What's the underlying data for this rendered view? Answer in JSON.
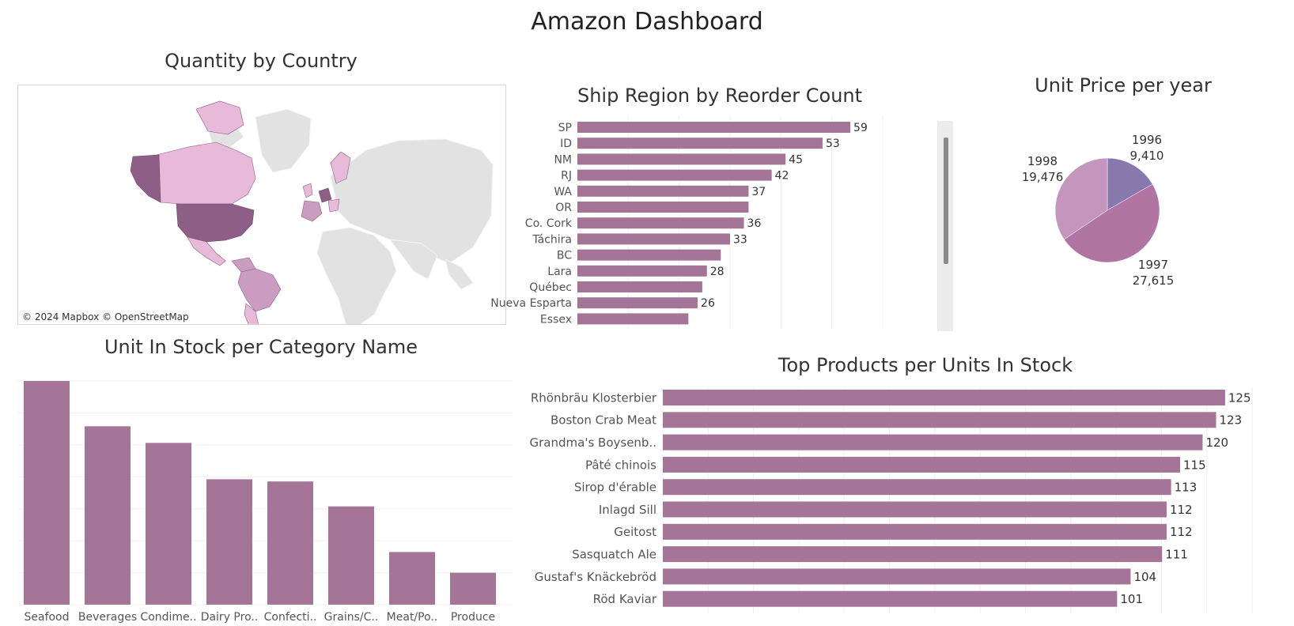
{
  "dashboard": {
    "title": "Amazon Dashboard"
  },
  "map": {
    "title": "Quantity by Country",
    "credit": "© 2024 Mapbox © OpenStreetMap",
    "colors": {
      "dark": "#8d5f86",
      "mid": "#c99cc0",
      "light": "#e6bad8",
      "land": "#e2e2e2",
      "water": "#ffffff"
    }
  },
  "chart_data": [
    {
      "type": "bar",
      "orientation": "horizontal",
      "title": "Ship Region by Reorder Count",
      "categories": [
        "SP",
        "ID",
        "NM",
        "RJ",
        "WA",
        "OR",
        "Co. Cork",
        "Táchira",
        "BC",
        "Lara",
        "Québec",
        "Nueva Esparta",
        "Essex"
      ],
      "values": [
        59,
        53,
        45,
        42,
        37,
        37,
        36,
        33,
        31,
        28,
        27,
        26,
        24
      ],
      "labels": [
        "59",
        "53",
        "45",
        "42",
        "37",
        "",
        "36",
        "33",
        "",
        "28",
        "",
        "26",
        ""
      ],
      "xlim": [
        0,
        66
      ],
      "grid": true,
      "color": "#a57597"
    },
    {
      "type": "pie",
      "title": "Unit Price per year",
      "slices": [
        {
          "label": "1996",
          "value": 9410,
          "value_label": "9,410",
          "color": "#8779ae"
        },
        {
          "label": "1997",
          "value": 27615,
          "value_label": "27,615",
          "color": "#b175a3"
        },
        {
          "label": "1998",
          "value": 19476,
          "value_label": "19,476",
          "color": "#c596bd"
        }
      ]
    },
    {
      "type": "bar",
      "orientation": "vertical",
      "title": "Unit In Stock per Category Name",
      "categories": [
        "Seafood",
        "Beverages",
        "Condime..",
        "Dairy Pro..",
        "Confecti..",
        "Grains/C..",
        "Meat/Po..",
        "Produce"
      ],
      "values": [
        701,
        559,
        507,
        393,
        386,
        308,
        165,
        100
      ],
      "ylim": [
        0,
        701
      ],
      "grid": true,
      "color": "#a57597"
    },
    {
      "type": "bar",
      "orientation": "horizontal",
      "title": "Top Products per Units In Stock",
      "categories": [
        "Rhönbräu Klosterbier",
        "Boston Crab Meat",
        "Grandma's Boysenb..",
        "Pâté chinois",
        "Sirop d'érable",
        "Inlagd Sill",
        "Geitost",
        "Sasquatch Ale",
        "Gustaf's Knäckebröd",
        "Röd Kaviar"
      ],
      "values": [
        125,
        123,
        120,
        115,
        113,
        112,
        112,
        111,
        104,
        101
      ],
      "labels": [
        "125",
        "123",
        "120",
        "115",
        "113",
        "112",
        "112",
        "111",
        "104",
        "101"
      ],
      "xlim": [
        0,
        131
      ],
      "grid": true,
      "color": "#a57597"
    }
  ]
}
